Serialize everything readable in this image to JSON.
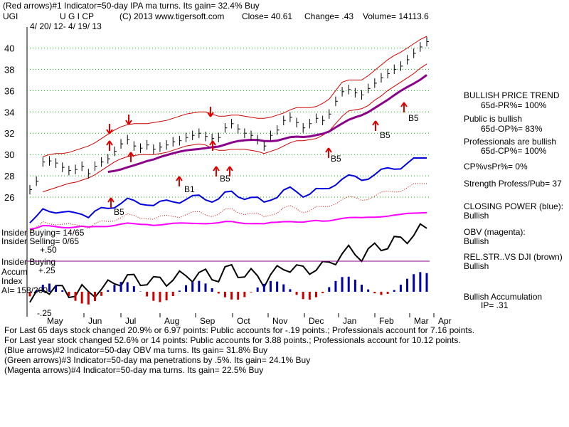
{
  "header": {
    "line1": "(Red arrows)#1 Indicator=50-day IPA ma turns. Its gain= 32.4% Buy",
    "ticker": "UGI",
    "company": "U G I CP",
    "copyright": "(C) 2013 www.tigersoft.com",
    "close": "Close=  40.61",
    "change": "Change= .43",
    "volume": "Volume= 14113.6",
    "date_range": "4/ 20/ 12-  4/ 19/ 13"
  },
  "insider": {
    "buying": "Insider Buying= 14/65",
    "selling": "Insider Selling= 0/65",
    "plus50": "+.50",
    "buying_label": "Insider Buying",
    "accum": "Accum",
    "index": "Index",
    "ai": "AI= 158/200",
    "plus25": "+.25",
    "minus25": "-.25"
  },
  "signals": {
    "b1": "B1",
    "b5": "B5"
  },
  "sidebar": {
    "trend_title": "BULLISH PRICE TREND",
    "trend_val": "65d-PR%= 100%",
    "public_title": "Public is bullish",
    "public_val": "65d-OP%= 83%",
    "pros_title": "Professionals are bullish",
    "pros_val": "65d-CP%= 100%",
    "cp_vs_pr": "CP%vsPr%=  0%",
    "strength": "Strength Profess/Pub= 37",
    "closing_power": "CLOSING POWER (blue):",
    "closing_power_val": "Bullish",
    "obv": "OBV (magenta):",
    "obv_val": "Bullish",
    "relstr": "REL.STR..VS DJI (brown)",
    "relstr_val": "Bullish",
    "accum": "Bullish Accumulation",
    "ip": "IP=  .31"
  },
  "footer": {
    "line1": "For Last 65 days stock changed  20.9% or  6.97 points:  Public accounts for -.19 points.;  Professionals account for  7.16 points.",
    "line2": "For Last year stock changed  52.6% or  14 points:  Public accounts for  3.88 points.;  Professionals account for  10.12 points.",
    "line3": "(Blue arrows)#2 Indicator=50-day OBV ma turns. Its gain= 31.8% Buy",
    "line4": "(Green arrows)#3 Indicator=50-day ma penetrations by .5%. Its gain= 24.1% Buy",
    "line5": "(Magenta arrows)#4 Indicator=50-day ma turns. Its gain= 22.5% Buy"
  },
  "colors": {
    "price": "#000000",
    "band": "#cc0000",
    "ma": "#8b008b",
    "closing_power": "#0000dd",
    "obv": "#ff00ff",
    "relstr": "#8b4513",
    "accum_pos": "#0000aa",
    "accum_neg": "#cc0000",
    "grid": "#00aa00",
    "arrow": "#dd0000"
  },
  "chart_data": {
    "type": "line",
    "title": "U G I CP",
    "ylim": [
      25,
      41.5
    ],
    "y_ticks": [
      26,
      28,
      30,
      32,
      34,
      36,
      38,
      40
    ],
    "months": [
      "May",
      "Jun",
      "Jul",
      "Aug",
      "Sep",
      "Oct",
      "Nov",
      "Dec",
      "Jan",
      "Feb",
      "Mar",
      "Apr"
    ],
    "series": [
      {
        "name": "Close",
        "values": [
          26.7,
          27.5,
          29.3,
          29.4,
          29.2,
          28.8,
          28.5,
          28.6,
          28.9,
          28.2,
          28.9,
          29.3,
          29.6,
          30.3,
          31.0,
          31.4,
          30.8,
          30.6,
          30.9,
          30.5,
          30.7,
          30.9,
          31.2,
          31.3,
          31.6,
          31.8,
          32.0,
          31.7,
          31.5,
          31.6,
          32.5,
          32.9,
          32.4,
          32.0,
          31.8,
          31.4,
          30.8,
          31.8,
          32.3,
          33.2,
          33.5,
          33.0,
          32.5,
          32.9,
          33.4,
          33.2,
          33.8,
          35.0,
          35.9,
          36.1,
          35.8,
          35.6,
          36.2,
          36.7,
          37.2,
          37.6,
          38.0,
          38.3,
          38.9,
          39.5,
          40.1,
          40.6
        ]
      },
      {
        "name": "Upper band",
        "values": [
          null,
          null,
          29.8,
          30.0,
          30.1,
          30.1,
          30.2,
          30.4,
          30.6,
          30.8,
          31.1,
          31.5,
          31.9,
          32.3,
          32.6,
          32.8,
          32.9,
          32.9,
          32.9,
          33.0,
          33.1,
          33.2,
          33.4,
          33.6,
          33.8,
          33.9,
          34.0,
          34.0,
          33.8,
          33.6,
          33.6,
          33.7,
          33.7,
          33.6,
          33.5,
          33.4,
          33.4,
          33.5,
          33.7,
          33.9,
          34.2,
          34.4,
          34.4,
          34.4,
          34.5,
          34.8,
          35.2,
          36.0,
          36.8,
          37.0,
          37.0,
          37.0,
          37.4,
          37.9,
          38.4,
          38.9,
          39.3,
          39.6,
          40.0,
          40.4,
          40.8,
          41.1
        ]
      },
      {
        "name": "Lower band",
        "values": [
          null,
          null,
          26.5,
          26.7,
          26.9,
          27.1,
          27.3,
          27.4,
          27.6,
          27.8,
          28.1,
          28.5,
          28.9,
          29.3,
          29.6,
          29.8,
          29.9,
          30.0,
          30.0,
          30.0,
          30.1,
          30.2,
          30.4,
          30.6,
          30.8,
          30.9,
          31.0,
          30.9,
          30.6,
          30.4,
          30.4,
          30.5,
          30.5,
          30.5,
          30.4,
          30.3,
          30.1,
          30.3,
          30.5,
          30.8,
          31.1,
          31.3,
          31.3,
          31.4,
          31.5,
          31.8,
          32.2,
          32.9,
          33.6,
          34.1,
          34.2,
          34.3,
          34.6,
          35.1,
          35.5,
          36.0,
          36.4,
          36.8,
          37.2,
          37.6,
          38.1,
          38.5
        ]
      }
    ]
  }
}
